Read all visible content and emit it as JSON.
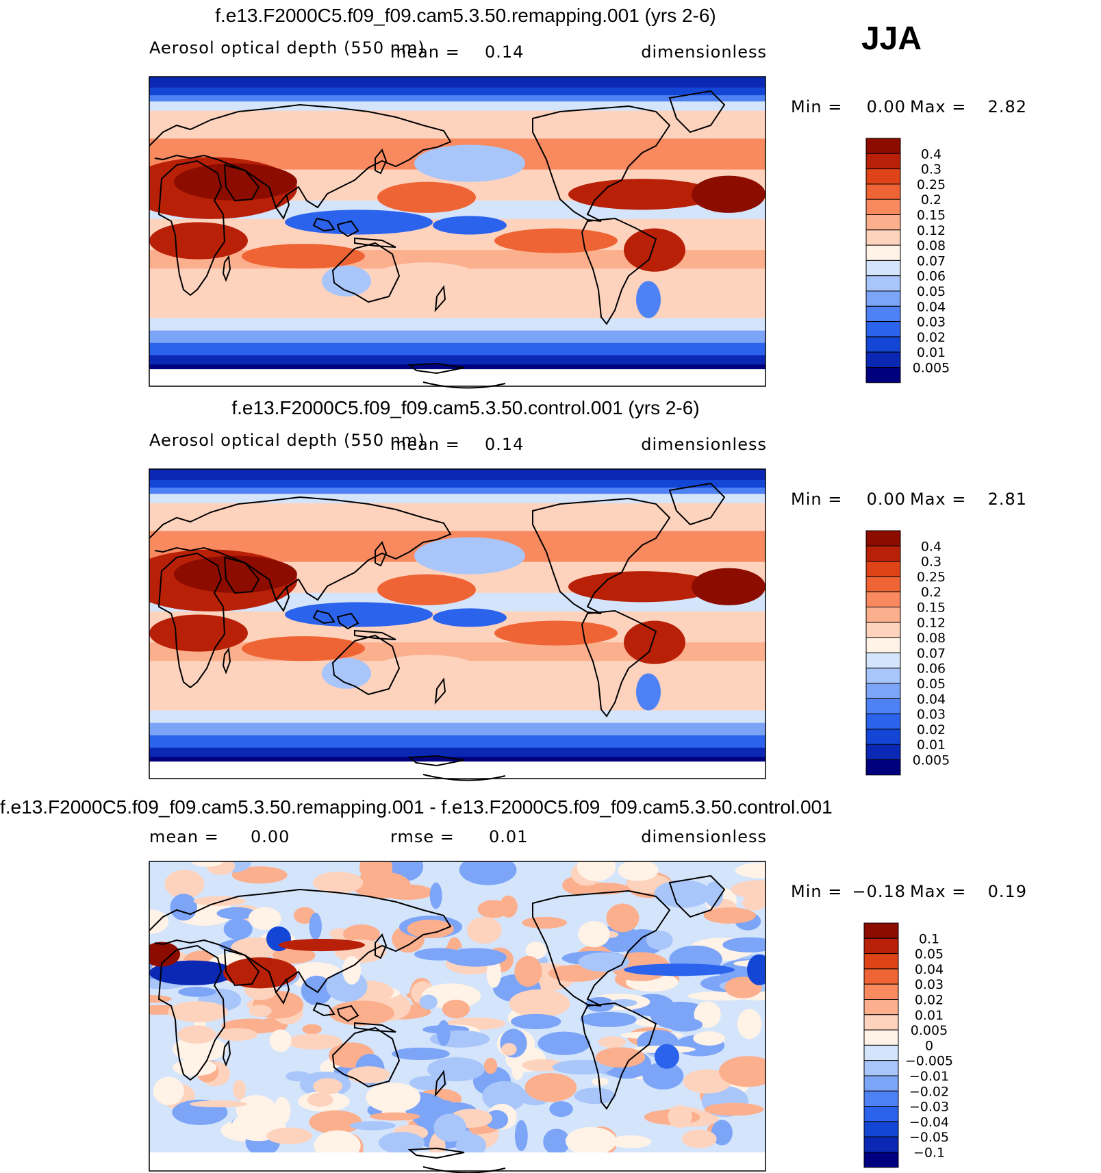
{
  "season": "JJA",
  "colors": {
    "aod": [
      "#00007f",
      "#0a28b4",
      "#1446d6",
      "#2c63ec",
      "#4e82f4",
      "#7ca4f7",
      "#a9c6fa",
      "#d4e4fb",
      "#fff2e6",
      "#fdd3be",
      "#fcaf8d",
      "#f98a60",
      "#ef6434",
      "#de4418",
      "#b82007",
      "#8c0c00"
    ],
    "diff": [
      "#00007f",
      "#0a28b4",
      "#1446d6",
      "#2c63ec",
      "#4e82f4",
      "#7ca4f7",
      "#a9c6fa",
      "#d4e4fb",
      "#fff2e6",
      "#fdd3be",
      "#fcaf8d",
      "#f98a60",
      "#ef6434",
      "#de4418",
      "#b82007",
      "#8c0c00"
    ]
  },
  "chart_data": [
    {
      "type": "heatmap",
      "title": "f.e13.F2000C5.f09_f09.cam5.3.50.remapping.001 (yrs 2-6)",
      "variable": "Aerosol optical depth (550 nm)",
      "mean_label": "mean =",
      "mean_value": "0.14",
      "units": "dimensionless",
      "min_label": "Min =",
      "min_value": "0.00",
      "max_label": "Max =",
      "max_value": "2.82",
      "colorbar_levels": [
        "0.4",
        "0.3",
        "0.25",
        "0.2",
        "0.15",
        "0.12",
        "0.08",
        "0.07",
        "0.06",
        "0.05",
        "0.04",
        "0.03",
        "0.02",
        "0.01",
        "0.005"
      ]
    },
    {
      "type": "heatmap",
      "title": "f.e13.F2000C5.f09_f09.cam5.3.50.control.001 (yrs 2-6)",
      "variable": "Aerosol optical depth (550 nm)",
      "mean_label": "mean =",
      "mean_value": "0.14",
      "units": "dimensionless",
      "min_label": "Min =",
      "min_value": "0.00",
      "max_label": "Max =",
      "max_value": "2.81",
      "colorbar_levels": [
        "0.4",
        "0.3",
        "0.25",
        "0.2",
        "0.15",
        "0.12",
        "0.08",
        "0.07",
        "0.06",
        "0.05",
        "0.04",
        "0.03",
        "0.02",
        "0.01",
        "0.005"
      ]
    },
    {
      "type": "heatmap",
      "title": "f.e13.F2000C5.f09_f09.cam5.3.50.remapping.001 - f.e13.F2000C5.f09_f09.cam5.3.50.control.001",
      "mean_label": "mean =",
      "mean_value": "0.00",
      "rmse_label": "rmse =",
      "rmse_value": "0.01",
      "units": "dimensionless",
      "min_label": "Min =",
      "min_value": "−0.18",
      "max_label": "Max =",
      "max_value": "0.19",
      "colorbar_levels": [
        "0.1",
        "0.05",
        "0.04",
        "0.03",
        "0.02",
        "0.01",
        "0.005",
        "0",
        "−0.005",
        "−0.01",
        "−0.02",
        "−0.03",
        "−0.04",
        "−0.05",
        "−0.1"
      ]
    }
  ]
}
